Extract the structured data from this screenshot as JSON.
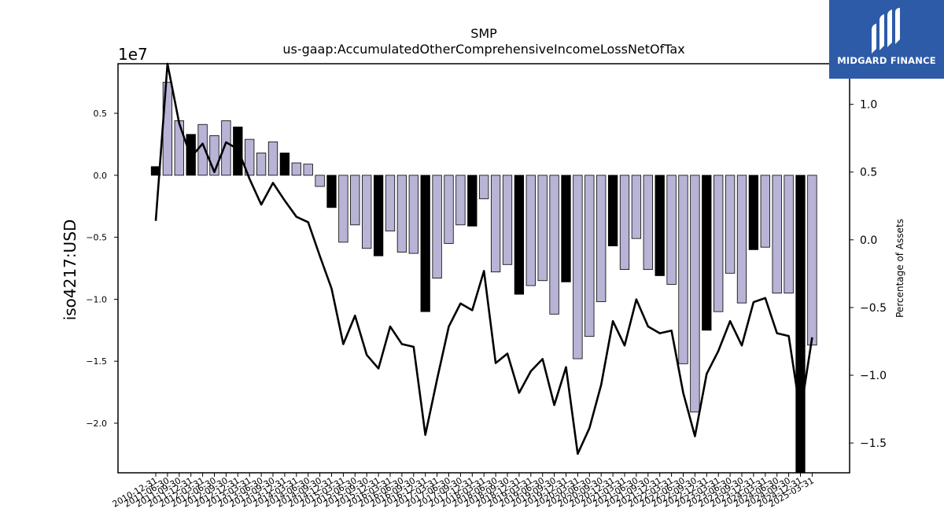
{
  "logo": {
    "text": "MIDGARD FINANCE"
  },
  "chart_data": {
    "type": "bar",
    "title": "SMP",
    "subtitle": "us-gaap:AccumulatedOtherComprehensiveIncomeLossNetOfTax",
    "ylabel": "iso4217:USD",
    "y2label": "Percentage of Assets",
    "y_scale_label": "1e7",
    "ylim": [
      -2.4,
      0.9
    ],
    "y2lim": [
      -1.72,
      1.3
    ],
    "yticks": [
      -2.0,
      -1.5,
      -1.0,
      -0.5,
      0.0,
      0.5
    ],
    "ytick_labels": [
      "−2.0",
      "−1.5",
      "−1.0",
      "−0.5",
      "0.0",
      "0.5"
    ],
    "y2ticks": [
      -1.5,
      -1.0,
      -0.5,
      0.0,
      0.5,
      1.0
    ],
    "y2tick_labels": [
      "−1.5",
      "−1.0",
      "−0.5",
      "0.0",
      "0.5",
      "1.0"
    ],
    "colors": {
      "annual": "#000000",
      "quarterly": "#b8b4d6",
      "line": "#000000"
    },
    "categories": [
      "2010-12-31",
      "2011-06-30",
      "2011-09-30",
      "2011-12-31",
      "2012-03-31",
      "2012-06-30",
      "2012-09-30",
      "2012-12-31",
      "2013-03-31",
      "2013-06-30",
      "2013-09-30",
      "2013-12-31",
      "2014-03-31",
      "2014-06-30",
      "2014-09-30",
      "2014-12-31",
      "2015-03-31",
      "2015-06-30",
      "2015-09-30",
      "2015-12-31",
      "2016-03-31",
      "2016-06-30",
      "2016-09-30",
      "2016-12-31",
      "2017-03-31",
      "2017-06-30",
      "2017-09-30",
      "2017-12-31",
      "2018-03-31",
      "2018-06-30",
      "2018-09-30",
      "2018-12-31",
      "2019-03-31",
      "2019-06-30",
      "2019-09-30",
      "2019-12-31",
      "2020-03-31",
      "2020-06-30",
      "2020-09-30",
      "2020-12-31",
      "2021-03-31",
      "2021-06-30",
      "2021-09-30",
      "2021-12-31",
      "2022-03-31",
      "2022-06-30",
      "2022-09-30",
      "2022-12-31",
      "2023-03-31",
      "2023-06-30",
      "2023-09-30",
      "2023-12-31",
      "2024-03-31",
      "2024-06-30",
      "2024-09-30",
      "2024-12-31",
      "2025-03-31"
    ],
    "series": [
      {
        "kind": "bar",
        "values": [
          0.07,
          0.75,
          0.44,
          0.33,
          0.41,
          0.32,
          0.44,
          0.39,
          0.29,
          0.18,
          0.27,
          0.18,
          0.1,
          0.09,
          -0.09,
          -0.26,
          -0.54,
          -0.4,
          -0.59,
          -0.65,
          -0.45,
          -0.62,
          -0.63,
          -1.1,
          -0.83,
          -0.55,
          -0.4,
          -0.41,
          -0.19,
          -0.78,
          -0.72,
          -0.96,
          -0.89,
          -0.85,
          -1.12,
          -0.86,
          -1.48,
          -1.3,
          -1.02,
          -0.57,
          -0.76,
          -0.51,
          -0.76,
          -0.81,
          -0.88,
          -1.52,
          -1.91,
          -1.25,
          -1.1,
          -0.79,
          -1.03,
          -0.6,
          -0.58,
          -0.95,
          -0.95,
          -2.4,
          -1.37
        ],
        "annual": [
          true,
          false,
          false,
          true,
          false,
          false,
          false,
          true,
          false,
          false,
          false,
          true,
          false,
          false,
          false,
          true,
          false,
          false,
          false,
          true,
          false,
          false,
          false,
          true,
          false,
          false,
          false,
          true,
          false,
          false,
          false,
          true,
          false,
          false,
          false,
          true,
          false,
          false,
          false,
          true,
          false,
          false,
          false,
          true,
          false,
          false,
          false,
          true,
          false,
          false,
          false,
          true,
          false,
          false,
          false,
          true,
          false
        ]
      },
      {
        "kind": "line",
        "axis": "right",
        "values": [
          0.14,
          1.32,
          0.86,
          0.61,
          0.71,
          0.5,
          0.72,
          0.67,
          0.45,
          0.26,
          0.42,
          0.29,
          0.17,
          0.13,
          -0.12,
          -0.36,
          -0.77,
          -0.56,
          -0.85,
          -0.95,
          -0.64,
          -0.77,
          -0.79,
          -1.44,
          -1.03,
          -0.64,
          -0.47,
          -0.52,
          -0.23,
          -0.91,
          -0.84,
          -1.13,
          -0.97,
          -0.88,
          -1.22,
          -0.94,
          -1.58,
          -1.39,
          -1.07,
          -0.6,
          -0.78,
          -0.44,
          -0.64,
          -0.69,
          -0.67,
          -1.13,
          -1.45,
          -0.99,
          -0.82,
          -0.6,
          -0.78,
          -0.46,
          -0.43,
          -0.69,
          -0.71,
          -1.28,
          -0.72
        ]
      }
    ]
  }
}
